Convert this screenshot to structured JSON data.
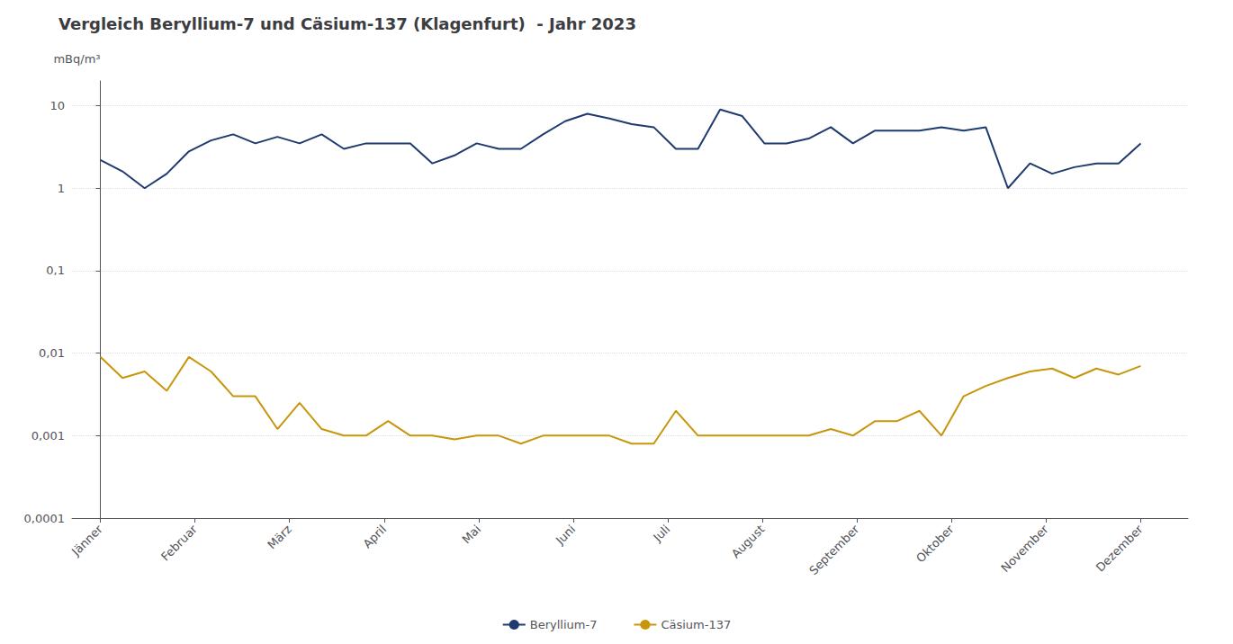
{
  "chart_data": {
    "type": "line",
    "title": "Vergleich Beryllium-7 und Cäsium-137 (Klagenfurt)  - Jahr 2023",
    "ylabel": "mBq/m³",
    "x": [
      0,
      0.234043,
      0.468085,
      0.702128,
      0.93617,
      1.170213,
      1.404255,
      1.638298,
      1.87234,
      2.106383,
      2.340426,
      2.574468,
      2.808511,
      3.042553,
      3.276596,
      3.510638,
      3.744681,
      3.978723,
      4.212766,
      4.446809,
      4.680851,
      4.914894,
      5.148936,
      5.382979,
      5.617021,
      5.851064,
      6.085106,
      6.319149,
      6.553191,
      6.787234,
      7.021277,
      7.255319,
      7.489362,
      7.723404,
      7.957447,
      8.191489,
      8.425532,
      8.659574,
      8.893617,
      9.12766,
      9.361702,
      9.595745,
      9.829787,
      10.06383,
      10.297872,
      10.531915,
      10.765957,
      11
    ],
    "series": [
      {
        "name": "Beryllium-7",
        "color": "#1f3a6e",
        "values": [
          2.2,
          1.6,
          1.0,
          1.5,
          2.8,
          3.8,
          4.5,
          3.5,
          4.2,
          3.5,
          4.5,
          3.0,
          3.5,
          3.5,
          3.5,
          2.0,
          2.5,
          3.5,
          3.0,
          3.0,
          4.5,
          6.5,
          8.0,
          7.0,
          6.0,
          5.5,
          3.0,
          3.0,
          9.0,
          7.5,
          3.5,
          3.5,
          4.0,
          5.5,
          3.5,
          5.0,
          5.0,
          5.0,
          5.5,
          5.0,
          5.5,
          1.0,
          2.0,
          1.5,
          1.8,
          2.0,
          2.0,
          3.5
        ]
      },
      {
        "name": "Cäsium-137",
        "color": "#c8960c",
        "values": [
          0.009,
          0.005,
          0.006,
          0.0035,
          0.009,
          0.006,
          0.003,
          0.003,
          0.0012,
          0.0025,
          0.0012,
          0.001,
          0.001,
          0.0015,
          0.001,
          0.001,
          0.0009,
          0.001,
          0.001,
          0.0008,
          0.001,
          0.001,
          0.001,
          0.001,
          0.0008,
          0.0008,
          0.002,
          0.001,
          0.001,
          0.001,
          0.001,
          0.001,
          0.001,
          0.0012,
          0.001,
          0.0015,
          0.0015,
          0.002,
          0.001,
          0.003,
          0.004,
          0.005,
          0.006,
          0.0065,
          0.005,
          0.0065,
          0.0055,
          0.007
        ]
      }
    ],
    "xlim": [
      -0.3,
      11.5
    ],
    "xticks": [
      {
        "value": 0,
        "label": "Jänner"
      },
      {
        "value": 1,
        "label": "Februar"
      },
      {
        "value": 2,
        "label": "März"
      },
      {
        "value": 3,
        "label": "April"
      },
      {
        "value": 4,
        "label": "Mai"
      },
      {
        "value": 5,
        "label": "Juni"
      },
      {
        "value": 6,
        "label": "Juli"
      },
      {
        "value": 7,
        "label": "August"
      },
      {
        "value": 8,
        "label": "September"
      },
      {
        "value": 9,
        "label": "Oktober"
      },
      {
        "value": 10,
        "label": "November"
      },
      {
        "value": 11,
        "label": "Dezember"
      }
    ],
    "ylim": [
      0.0001,
      20
    ],
    "yticks": [
      {
        "value": 0.0001,
        "label": "0,0001"
      },
      {
        "value": 0.001,
        "label": "0,001"
      },
      {
        "value": 0.01,
        "label": "0,01"
      },
      {
        "value": 0.1,
        "label": "0,1"
      },
      1,
      10
    ],
    "log": "y",
    "grid": true,
    "legend": "bottom"
  }
}
